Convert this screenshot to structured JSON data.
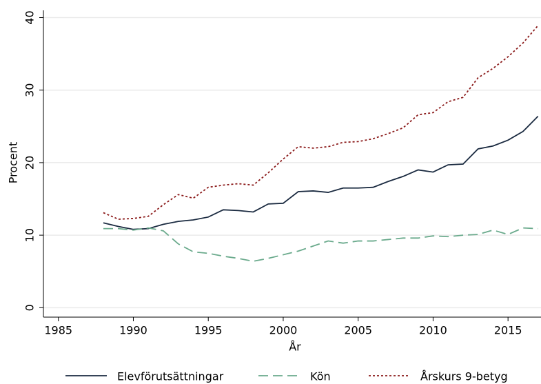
{
  "chart_data": {
    "type": "line",
    "x_label": "År",
    "y_label": "Procent",
    "x": [
      1988,
      1989,
      1990,
      1991,
      1992,
      1993,
      1994,
      1995,
      1996,
      1997,
      1998,
      1999,
      2000,
      2001,
      2002,
      2003,
      2004,
      2005,
      2006,
      2007,
      2008,
      2009,
      2010,
      2011,
      2012,
      2013,
      2014,
      2015,
      2016,
      2017
    ],
    "series": [
      {
        "name": "Elevförutsättningar",
        "color": "#1a2a40",
        "dash": "solid",
        "values": [
          11.7,
          11.2,
          10.8,
          10.9,
          11.5,
          11.9,
          12.1,
          12.5,
          13.5,
          13.4,
          13.2,
          14.3,
          14.4,
          16.0,
          16.1,
          15.9,
          16.5,
          16.5,
          16.6,
          17.4,
          18.1,
          19.0,
          18.7,
          19.7,
          19.8,
          21.9,
          22.3,
          23.1,
          24.3,
          26.4
        ]
      },
      {
        "name": "Kön",
        "color": "#6aaa8c",
        "dash": "dashed",
        "values": [
          10.9,
          10.9,
          10.7,
          11.0,
          10.6,
          8.8,
          7.7,
          7.5,
          7.1,
          6.8,
          6.4,
          6.8,
          7.3,
          7.8,
          8.5,
          9.2,
          8.9,
          9.2,
          9.2,
          9.4,
          9.6,
          9.6,
          9.9,
          9.8,
          10.0,
          10.1,
          10.7,
          10.1,
          11.0,
          10.9
        ]
      },
      {
        "name": "Årskurs 9-betyg",
        "color": "#8b1a1a",
        "dash": "dotted",
        "values": [
          13.1,
          12.2,
          12.3,
          12.6,
          14.2,
          15.6,
          15.1,
          16.6,
          16.9,
          17.1,
          16.9,
          18.6,
          20.5,
          22.2,
          22.0,
          22.2,
          22.8,
          22.9,
          23.3,
          24.0,
          24.8,
          26.6,
          26.9,
          28.4,
          29.0,
          31.7,
          33.0,
          34.6,
          36.5,
          38.9
        ]
      }
    ],
    "xlim": [
      1984,
      2017.2
    ],
    "xticks": [
      1985,
      1990,
      1995,
      2000,
      2005,
      2010,
      2015
    ],
    "ylim": [
      -1.3,
      41
    ],
    "yticks": [
      0,
      10,
      20,
      30,
      40
    ],
    "grid": true,
    "legend": "bottom"
  }
}
